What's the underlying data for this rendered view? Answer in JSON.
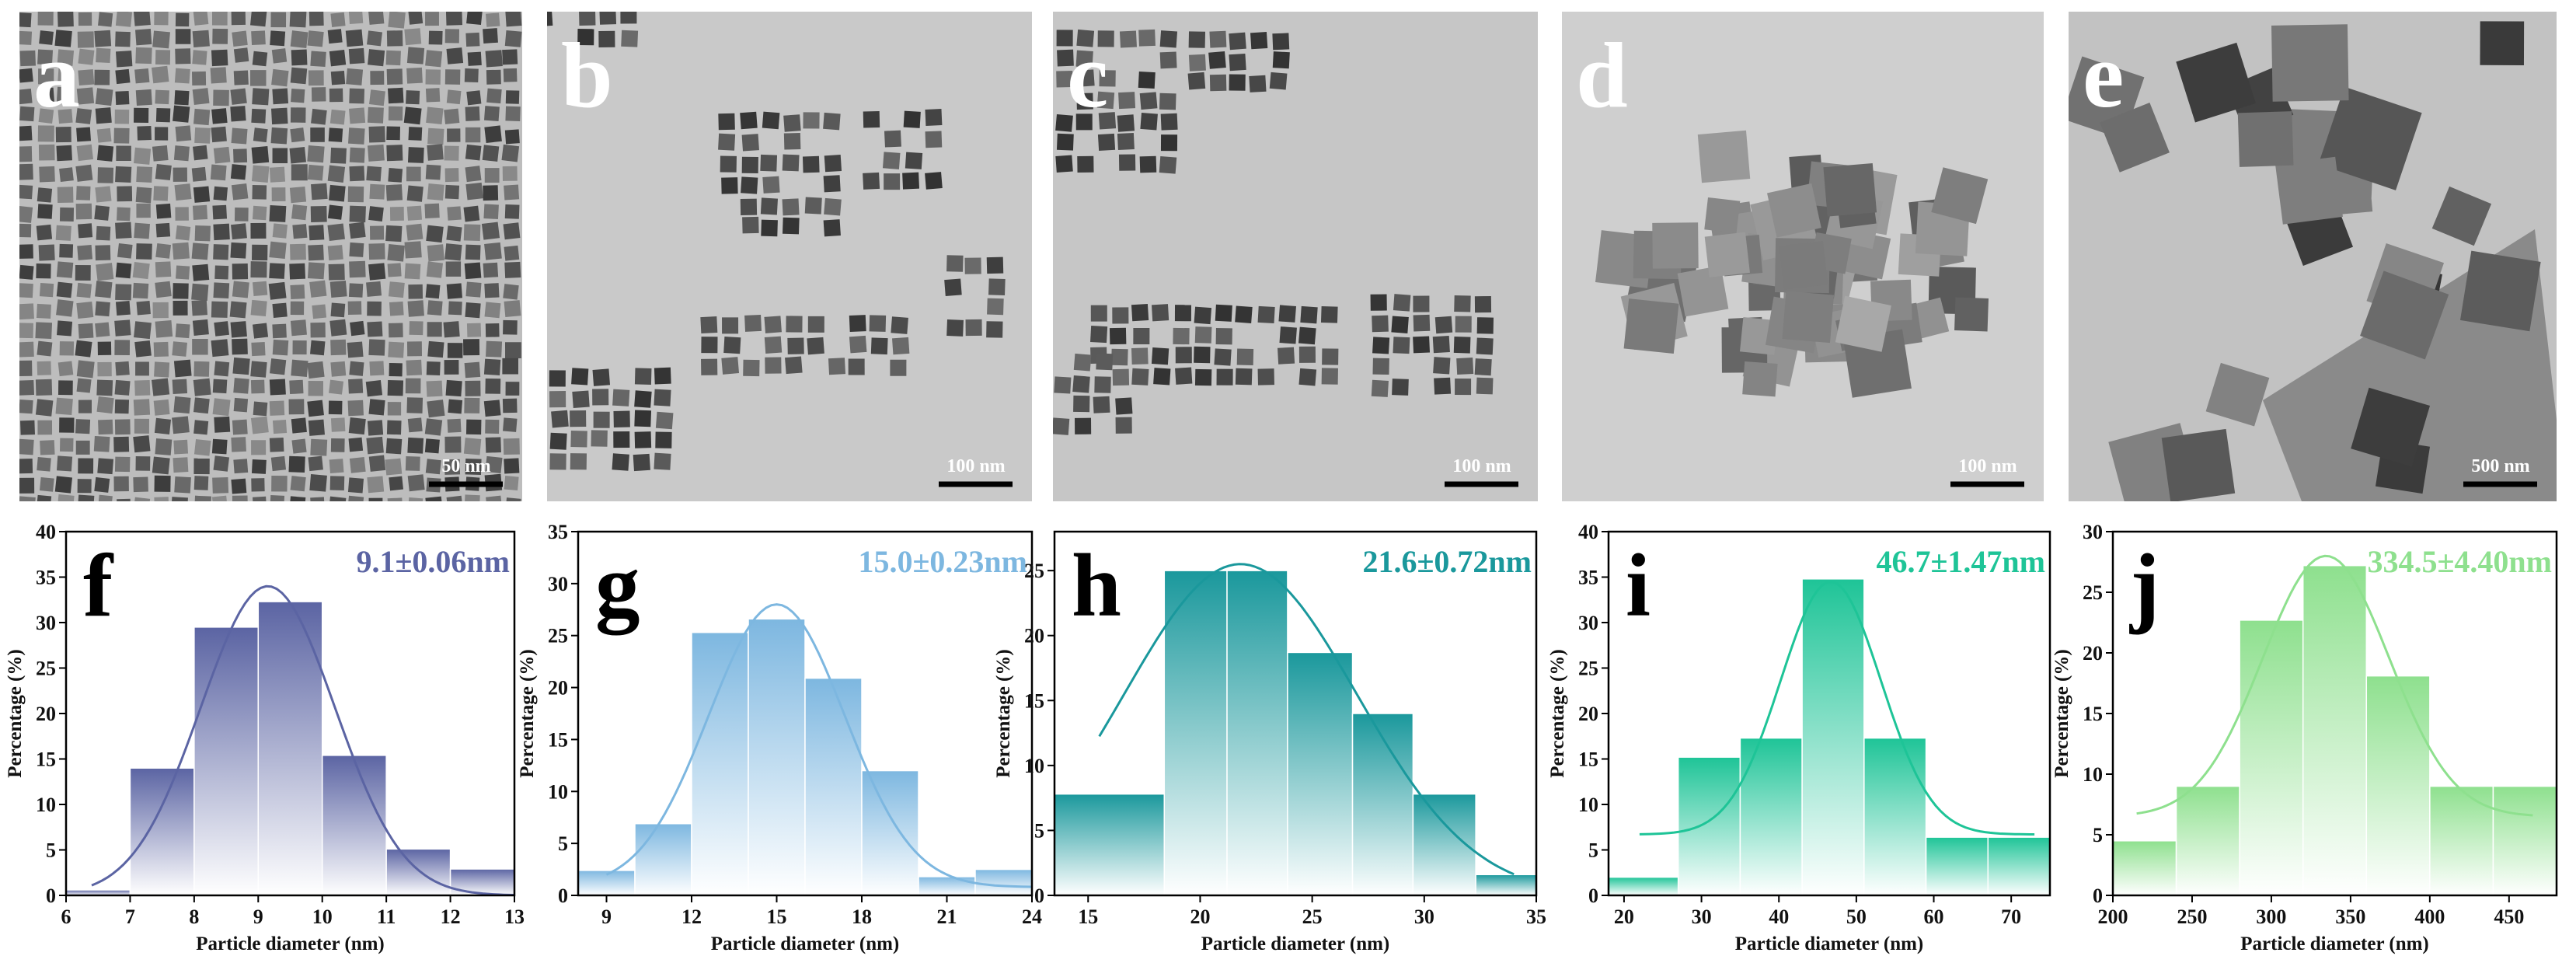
{
  "images": [
    {
      "label": "a",
      "scale_bar": "50 nm"
    },
    {
      "label": "b",
      "scale_bar": "100 nm"
    },
    {
      "label": "c",
      "scale_bar": "100 nm"
    },
    {
      "label": "d",
      "scale_bar": "100 nm"
    },
    {
      "label": "e",
      "scale_bar": "500 nm"
    }
  ],
  "chart_data": [
    {
      "type": "histogram",
      "label": "f",
      "annotation": "9.1±0.06nm",
      "xlabel": "Particle diameter (nm)",
      "ylabel": "Percentage (%)",
      "color": "#5b64a3",
      "bins": [
        6,
        7,
        8,
        9,
        10,
        11,
        12,
        13
      ],
      "values": [
        0.6,
        14,
        29.5,
        32.3,
        15.4,
        5.1,
        2.9
      ],
      "xlim": [
        6,
        13
      ],
      "xticks": [
        6,
        7,
        8,
        9,
        10,
        11,
        12,
        13
      ],
      "ylim": [
        0,
        40
      ],
      "yticks": [
        0,
        5,
        10,
        15,
        20,
        25,
        30,
        35,
        40
      ],
      "fit": {
        "center": 9.15,
        "sigma": 1.05,
        "peak": 34,
        "base": 0,
        "x": [
          6.4,
          13
        ]
      }
    },
    {
      "type": "histogram",
      "label": "g",
      "annotation": "15.0±0.23nm",
      "xlabel": "Particle diameter (nm)",
      "ylabel": "Percentage (%)",
      "color": "#7db7e0",
      "bins": [
        8,
        10,
        12,
        14,
        16,
        18,
        20,
        22,
        24
      ],
      "values": [
        2.4,
        6.9,
        25.3,
        26.6,
        20.9,
        12,
        1.8,
        2.5
      ],
      "xlim": [
        8,
        24
      ],
      "xticks": [
        9,
        12,
        15,
        18,
        21,
        24
      ],
      "ylim": [
        0,
        35
      ],
      "yticks": [
        0,
        5,
        10,
        15,
        20,
        25,
        30,
        35
      ],
      "fit": {
        "center": 15,
        "sigma": 2.4,
        "peak": 28,
        "base": 0.8,
        "x": [
          9,
          24
        ]
      }
    },
    {
      "type": "histogram",
      "label": "h",
      "annotation": "21.6±0.72nm",
      "xlabel": "Particle diameter (nm)",
      "ylabel": "Percentage (%)",
      "color": "#1a989c",
      "bins": [
        13.5,
        18.4,
        21.2,
        23.9,
        26.8,
        29.5,
        32.3,
        35
      ],
      "values": [
        7.8,
        25,
        25,
        18.7,
        14,
        7.8,
        1.6
      ],
      "xlim": [
        13.5,
        35
      ],
      "xticks": [
        15,
        20,
        25,
        30,
        35
      ],
      "ylim": [
        0,
        28
      ],
      "yticks": [
        0,
        5,
        10,
        15,
        20,
        25
      ],
      "fit": {
        "center": 21.8,
        "sigma": 5.2,
        "peak": 25.5,
        "base": 0,
        "x": [
          15.5,
          34
        ]
      }
    },
    {
      "type": "histogram",
      "label": "i",
      "annotation": "46.7±1.47nm",
      "xlabel": "Particle diameter (nm)",
      "ylabel": "Percentage (%)",
      "color": "#1ec497",
      "bins": [
        18,
        27,
        35,
        43,
        51,
        59,
        67,
        75
      ],
      "values": [
        2,
        15.2,
        17.3,
        34.8,
        17.3,
        6.4,
        6.4
      ],
      "xlim": [
        18,
        75
      ],
      "xticks": [
        20,
        30,
        40,
        50,
        60,
        70
      ],
      "ylim": [
        0,
        40
      ],
      "yticks": [
        0,
        5,
        10,
        15,
        20,
        25,
        30,
        35,
        40
      ],
      "fit": {
        "center": 46.7,
        "sigma": 6.5,
        "peak": 34.5,
        "base": 6.7,
        "x": [
          22,
          73
        ]
      }
    },
    {
      "type": "histogram",
      "label": "j",
      "annotation": "334.5±4.40nm",
      "xlabel": "Particle diameter (nm)",
      "ylabel": "Percentage (%)",
      "color": "#8ee08e",
      "bins": [
        200,
        240,
        280,
        320,
        360,
        400,
        440,
        480
      ],
      "values": [
        4.5,
        9,
        22.7,
        27.2,
        18.1,
        9,
        9
      ],
      "xlim": [
        200,
        480
      ],
      "xticks": [
        200,
        250,
        300,
        350,
        400,
        450
      ],
      "ylim": [
        0,
        30
      ],
      "yticks": [
        0,
        5,
        10,
        15,
        20,
        25,
        30
      ],
      "fit": {
        "center": 334.5,
        "sigma": 40,
        "peak": 28,
        "base": 6.5,
        "x": [
          215,
          465
        ]
      }
    }
  ]
}
